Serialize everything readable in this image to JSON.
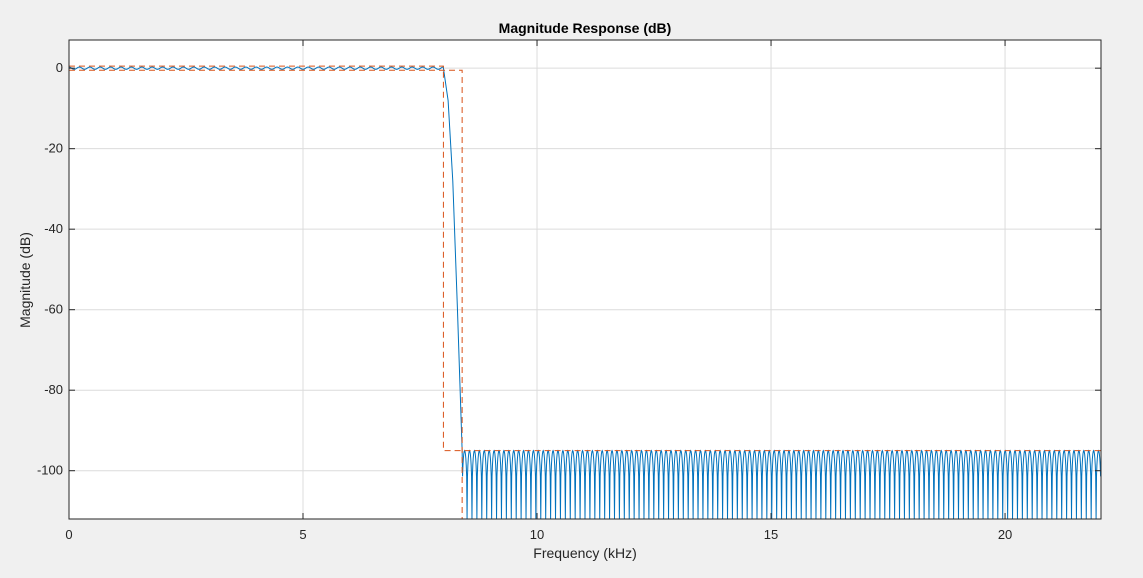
{
  "window": {
    "background_color": "#f0f0f0"
  },
  "chart_data": {
    "type": "line",
    "title": "Magnitude Response (dB)",
    "xlabel": "Frequency (kHz)",
    "ylabel": "Magnitude (dB)",
    "xlim": [
      0,
      22.05
    ],
    "ylim": [
      -112,
      7
    ],
    "xticks": [
      0,
      5,
      10,
      15,
      20
    ],
    "xtick_labels": [
      "0",
      "5",
      "10",
      "15",
      "20"
    ],
    "yticks": [
      0,
      -20,
      -40,
      -60,
      -80,
      -100
    ],
    "ytick_labels": [
      "0",
      "-20",
      "-40",
      "-60",
      "-80",
      "-100"
    ],
    "grid": true,
    "series": [
      {
        "style": "solid",
        "color": "#0072bd",
        "passband_edge_khz": 8.0,
        "stopband_edge_khz": 8.4,
        "passband_ripple_db": 0.5,
        "stopband_peak_db": -95,
        "stopband_floor_db": -112,
        "stopband_lobe_spacing_khz": 0.105,
        "transition_points": [
          [
            8.0,
            0.0
          ],
          [
            8.1,
            -8.0
          ],
          [
            8.2,
            -28.0
          ],
          [
            8.3,
            -60.0
          ],
          [
            8.4,
            -95.0
          ]
        ]
      },
      {
        "style": "dashed",
        "color": "#d95319",
        "mask_segments": [
          [
            [
              0,
              0.5
            ],
            [
              8.0,
              0.5
            ],
            [
              8.0,
              -95
            ],
            [
              22.05,
              -95
            ]
          ],
          [
            [
              0,
              -0.5
            ],
            [
              8.4,
              -0.5
            ],
            [
              8.4,
              -112
            ]
          ]
        ]
      }
    ]
  }
}
